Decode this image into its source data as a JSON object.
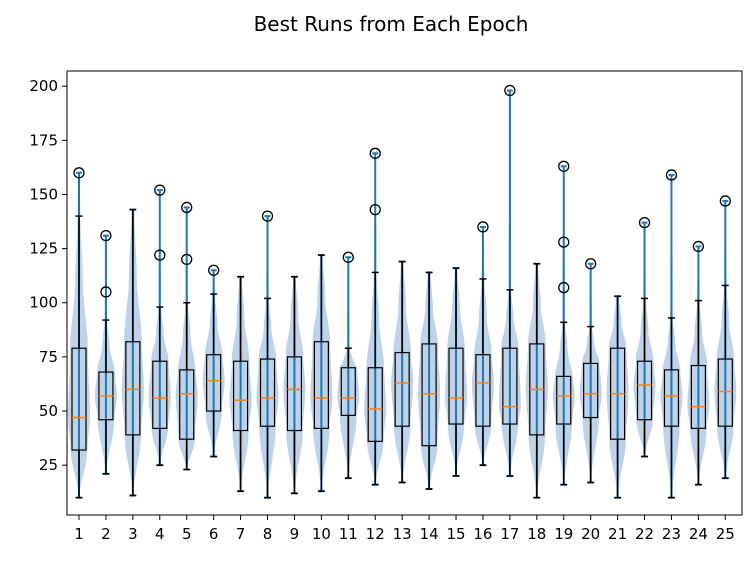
{
  "chart_data": {
    "type": "box-violin",
    "title": "Best Runs from Each Epoch",
    "xlabel": "",
    "ylabel": "",
    "categories": [
      "1",
      "2",
      "3",
      "4",
      "5",
      "6",
      "7",
      "8",
      "9",
      "10",
      "11",
      "12",
      "13",
      "14",
      "15",
      "16",
      "17",
      "18",
      "19",
      "20",
      "21",
      "22",
      "23",
      "24",
      "25"
    ],
    "ylim": [
      2,
      207
    ],
    "yticks": [
      25,
      50,
      75,
      100,
      125,
      150,
      175,
      200
    ],
    "grid": false,
    "boxes": [
      {
        "q1": 32,
        "median": 47,
        "q3": 79,
        "whisker_low": 10,
        "whisker_high": 140,
        "min": 10,
        "max": 160,
        "outliers": [
          160
        ]
      },
      {
        "q1": 46,
        "median": 57,
        "q3": 68,
        "whisker_low": 21,
        "whisker_high": 92,
        "min": 21,
        "max": 131,
        "outliers": [
          105,
          131
        ]
      },
      {
        "q1": 39,
        "median": 60,
        "q3": 82,
        "whisker_low": 11,
        "whisker_high": 143,
        "min": 11,
        "max": 143,
        "outliers": []
      },
      {
        "q1": 42,
        "median": 56,
        "q3": 73,
        "whisker_low": 25,
        "whisker_high": 98,
        "min": 25,
        "max": 152,
        "outliers": [
          122,
          152
        ]
      },
      {
        "q1": 37,
        "median": 58,
        "q3": 69,
        "whisker_low": 23,
        "whisker_high": 100,
        "min": 23,
        "max": 144,
        "outliers": [
          120,
          144
        ]
      },
      {
        "q1": 50,
        "median": 64,
        "q3": 76,
        "whisker_low": 29,
        "whisker_high": 104,
        "min": 29,
        "max": 115,
        "outliers": [
          115
        ]
      },
      {
        "q1": 41,
        "median": 55,
        "q3": 73,
        "whisker_low": 13,
        "whisker_high": 112,
        "min": 13,
        "max": 112,
        "outliers": []
      },
      {
        "q1": 43,
        "median": 56,
        "q3": 74,
        "whisker_low": 10,
        "whisker_high": 102,
        "min": 10,
        "max": 140,
        "outliers": [
          140
        ]
      },
      {
        "q1": 41,
        "median": 60,
        "q3": 75,
        "whisker_low": 12,
        "whisker_high": 112,
        "min": 12,
        "max": 112,
        "outliers": []
      },
      {
        "q1": 42,
        "median": 56,
        "q3": 82,
        "whisker_low": 13,
        "whisker_high": 122,
        "min": 13,
        "max": 122,
        "outliers": []
      },
      {
        "q1": 48,
        "median": 56,
        "q3": 70,
        "whisker_low": 19,
        "whisker_high": 79,
        "min": 19,
        "max": 121,
        "outliers": [
          121
        ]
      },
      {
        "q1": 36,
        "median": 51,
        "q3": 70,
        "whisker_low": 16,
        "whisker_high": 114,
        "min": 16,
        "max": 169,
        "outliers": [
          143,
          169
        ]
      },
      {
        "q1": 43,
        "median": 63,
        "q3": 77,
        "whisker_low": 17,
        "whisker_high": 119,
        "min": 17,
        "max": 119,
        "outliers": []
      },
      {
        "q1": 34,
        "median": 58,
        "q3": 81,
        "whisker_low": 14,
        "whisker_high": 114,
        "min": 14,
        "max": 114,
        "outliers": []
      },
      {
        "q1": 44,
        "median": 56,
        "q3": 79,
        "whisker_low": 20,
        "whisker_high": 116,
        "min": 20,
        "max": 116,
        "outliers": []
      },
      {
        "q1": 43,
        "median": 63,
        "q3": 76,
        "whisker_low": 25,
        "whisker_high": 111,
        "min": 25,
        "max": 135,
        "outliers": [
          135
        ]
      },
      {
        "q1": 44,
        "median": 52,
        "q3": 79,
        "whisker_low": 20,
        "whisker_high": 106,
        "min": 20,
        "max": 198,
        "outliers": [
          198
        ]
      },
      {
        "q1": 39,
        "median": 60,
        "q3": 81,
        "whisker_low": 10,
        "whisker_high": 118,
        "min": 10,
        "max": 118,
        "outliers": []
      },
      {
        "q1": 44,
        "median": 57,
        "q3": 66,
        "whisker_low": 16,
        "whisker_high": 91,
        "min": 16,
        "max": 163,
        "outliers": [
          107,
          128,
          163
        ]
      },
      {
        "q1": 47,
        "median": 58,
        "q3": 72,
        "whisker_low": 17,
        "whisker_high": 89,
        "min": 17,
        "max": 118,
        "outliers": [
          118
        ]
      },
      {
        "q1": 37,
        "median": 58,
        "q3": 79,
        "whisker_low": 10,
        "whisker_high": 103,
        "min": 10,
        "max": 103,
        "outliers": []
      },
      {
        "q1": 46,
        "median": 62,
        "q3": 73,
        "whisker_low": 29,
        "whisker_high": 102,
        "min": 29,
        "max": 137,
        "outliers": [
          137
        ]
      },
      {
        "q1": 43,
        "median": 57,
        "q3": 69,
        "whisker_low": 10,
        "whisker_high": 93,
        "min": 10,
        "max": 159,
        "outliers": [
          159
        ]
      },
      {
        "q1": 42,
        "median": 52,
        "q3": 71,
        "whisker_low": 16,
        "whisker_high": 101,
        "min": 16,
        "max": 126,
        "outliers": [
          126
        ]
      },
      {
        "q1": 43,
        "median": 59,
        "q3": 74,
        "whisker_low": 19,
        "whisker_high": 108,
        "min": 19,
        "max": 147,
        "outliers": [
          147
        ]
      }
    ],
    "colors": {
      "violin": "#a9c3df",
      "violin_line": "#1f77b4",
      "median": "#ff7f0e",
      "box": "#000000"
    }
  }
}
